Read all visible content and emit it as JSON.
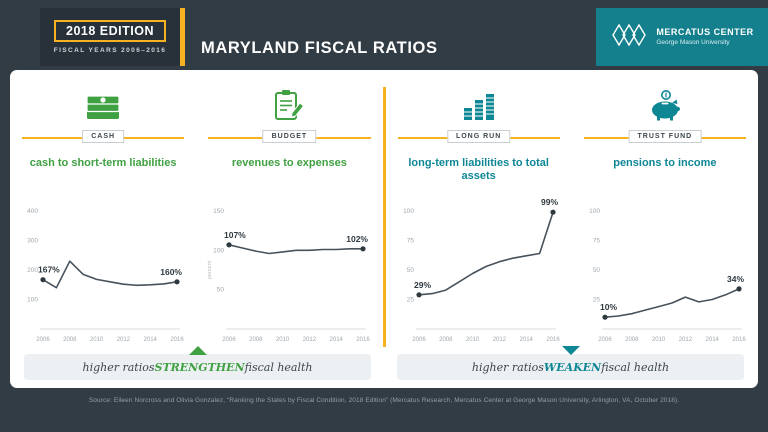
{
  "header": {
    "edition_badge": "2018 EDITION",
    "fiscal_years": "FISCAL YEARS 2006–2016",
    "title": "MARYLAND FISCAL RATIOS",
    "org": {
      "name": "MERCATUS CENTER",
      "subtitle": "George Mason University"
    }
  },
  "panels": [
    {
      "tag": "CASH",
      "ratio_title": "cash to short-term liabilities"
    },
    {
      "tag": "BUDGET",
      "ratio_title": "revenues to expenses"
    },
    {
      "tag": "LONG RUN",
      "ratio_title": "long-term liabilities to total assets"
    },
    {
      "tag": "TRUST FUND",
      "ratio_title": "pensions to income"
    }
  ],
  "chart_data": [
    {
      "type": "line",
      "title": "cash to short-term liabilities",
      "x": [
        2006,
        2007,
        2008,
        2009,
        2010,
        2011,
        2012,
        2013,
        2014,
        2015,
        2016
      ],
      "values": [
        167,
        140,
        230,
        185,
        168,
        160,
        152,
        148,
        150,
        153,
        160
      ],
      "ylim": [
        0,
        400
      ],
      "yticks": [
        100,
        200,
        300,
        400
      ],
      "xticks": [
        2006,
        2008,
        2010,
        2012,
        2014,
        2016
      ],
      "first_label": "167%",
      "last_label": "160%"
    },
    {
      "type": "line",
      "title": "revenues to expenses",
      "ylabel": "percent",
      "x": [
        2006,
        2007,
        2008,
        2009,
        2010,
        2011,
        2012,
        2013,
        2014,
        2015,
        2016
      ],
      "values": [
        107,
        103,
        99,
        96,
        98,
        100,
        100,
        101,
        101,
        102,
        102
      ],
      "ylim": [
        0,
        150
      ],
      "yticks": [
        50,
        100,
        150
      ],
      "xticks": [
        2006,
        2008,
        2010,
        2012,
        2014,
        2016
      ],
      "first_label": "107%",
      "last_label": "102%"
    },
    {
      "type": "line",
      "title": "long-term liabilities to total assets",
      "x": [
        2006,
        2007,
        2008,
        2009,
        2010,
        2011,
        2012,
        2013,
        2014,
        2015,
        2016
      ],
      "values": [
        29,
        30,
        33,
        40,
        47,
        53,
        57,
        60,
        62,
        64,
        99
      ],
      "ylim": [
        0,
        100
      ],
      "yticks": [
        25,
        50,
        75,
        100
      ],
      "xticks": [
        2006,
        2008,
        2010,
        2012,
        2014,
        2016
      ],
      "first_label": "29%",
      "last_label": "99%"
    },
    {
      "type": "line",
      "title": "pensions to income",
      "x": [
        2006,
        2007,
        2008,
        2009,
        2010,
        2011,
        2012,
        2013,
        2014,
        2015,
        2016
      ],
      "values": [
        10,
        11,
        13,
        16,
        19,
        22,
        27,
        23,
        25,
        29,
        34
      ],
      "ylim": [
        0,
        100
      ],
      "yticks": [
        25,
        50,
        75,
        100
      ],
      "xticks": [
        2006,
        2008,
        2010,
        2012,
        2014,
        2016
      ],
      "first_label": "10%",
      "last_label": "34%"
    }
  ],
  "verdicts": [
    {
      "prefix": "higher ratios ",
      "keyword": "STRENGTHEN",
      "suffix": " fiscal health"
    },
    {
      "prefix": "higher ratios ",
      "keyword": "WEAKEN",
      "suffix": " fiscal health"
    }
  ],
  "source": "Source: Eileen Norcross and Olivia Gonzalez, “Ranking the States by Fiscal Condition, 2018 Edition” (Mercatus Research, Mercatus Center at George Mason University, Arlington, VA, October 2018).",
  "colors": {
    "gold": "#f6b221",
    "green": "#3fa142",
    "teal": "#0e8795",
    "navy_background": "#323c45",
    "header_teal": "#14808d",
    "chart_line": "#47525c"
  }
}
